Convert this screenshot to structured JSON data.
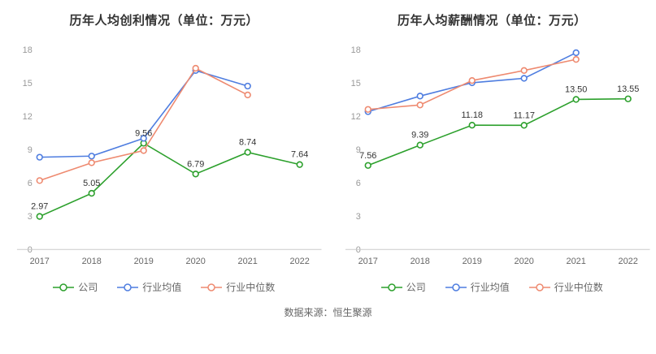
{
  "caption": "数据来源：恒生聚源",
  "style": {
    "title_color": "#333333",
    "value_label_color": "#333333",
    "y_tick_color": "#999999",
    "x_tick_color": "#666666",
    "axis_line_color": "#cccccc",
    "legend_text_color": "#666666",
    "background": "#ffffff"
  },
  "chart_data": [
    {
      "type": "line",
      "title": "历年人均创利情况（单位：万元）",
      "categories": [
        "2017",
        "2018",
        "2019",
        "2020",
        "2021",
        "2022"
      ],
      "ylim": [
        0,
        18
      ],
      "yticks": [
        0,
        3,
        6,
        9,
        12,
        15,
        18
      ],
      "grid": false,
      "legend_position": "bottom",
      "series": [
        {
          "name": "公司",
          "color": "#2ca02c",
          "show_labels": true,
          "values": [
            2.97,
            5.05,
            9.56,
            6.79,
            8.74,
            7.64
          ],
          "labels": [
            "2.97",
            "5.05",
            "9.56",
            "6.79",
            "8.74",
            "7.64"
          ]
        },
        {
          "name": "行业均值",
          "color": "#4e7de0",
          "show_labels": false,
          "values": [
            8.3,
            8.4,
            10.0,
            16.1,
            14.7,
            null
          ]
        },
        {
          "name": "行业中位数",
          "color": "#ee8a70",
          "show_labels": false,
          "values": [
            6.2,
            7.8,
            8.9,
            16.3,
            13.9,
            null
          ]
        }
      ]
    },
    {
      "type": "line",
      "title": "历年人均薪酬情况（单位：万元）",
      "categories": [
        "2017",
        "2018",
        "2019",
        "2020",
        "2021",
        "2022"
      ],
      "ylim": [
        0,
        18
      ],
      "yticks": [
        0,
        3,
        6,
        9,
        12,
        15,
        18
      ],
      "grid": false,
      "legend_position": "bottom",
      "series": [
        {
          "name": "公司",
          "color": "#2ca02c",
          "show_labels": true,
          "values": [
            7.56,
            9.39,
            11.18,
            11.17,
            13.5,
            13.55
          ],
          "labels": [
            "7.56",
            "9.39",
            "11.18",
            "11.17",
            "13.50",
            "13.55"
          ]
        },
        {
          "name": "行业均值",
          "color": "#4e7de0",
          "show_labels": false,
          "values": [
            12.4,
            13.8,
            15.0,
            15.4,
            17.7,
            null
          ]
        },
        {
          "name": "行业中位数",
          "color": "#ee8a70",
          "show_labels": false,
          "values": [
            12.6,
            13.0,
            15.2,
            16.1,
            17.1,
            null
          ]
        }
      ]
    }
  ]
}
